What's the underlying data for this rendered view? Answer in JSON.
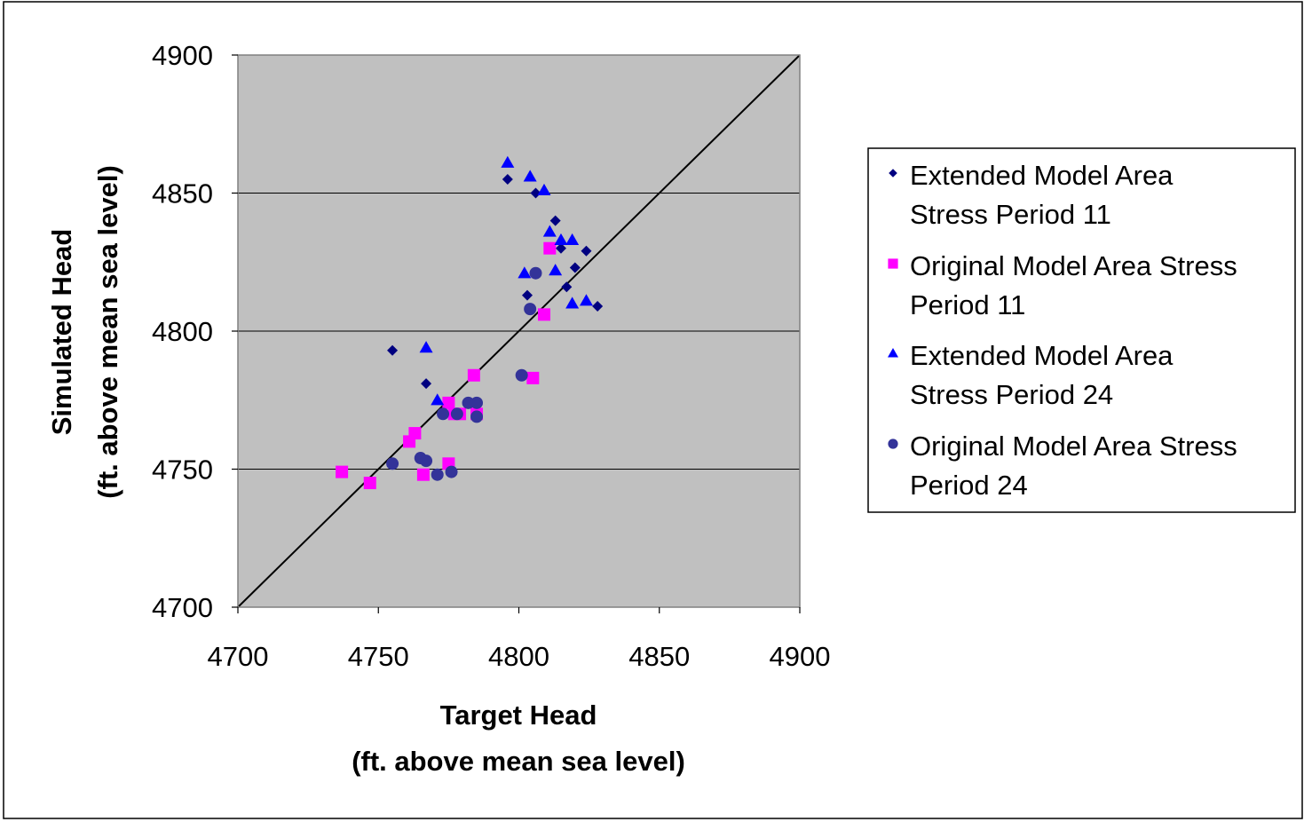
{
  "chart_data": {
    "type": "scatter",
    "title": "",
    "xlabel_line1": "Target Head",
    "xlabel_line2": "(ft. above mean sea level)",
    "ylabel_line1": "Simulated Head",
    "ylabel_line2": "(ft. above mean sea level)",
    "xlim": [
      4700,
      4900
    ],
    "ylim": [
      4700,
      4900
    ],
    "x_ticks": [
      "4700",
      "4750",
      "4800",
      "4850",
      "4900"
    ],
    "y_ticks": [
      "4700",
      "4750",
      "4800",
      "4850",
      "4900"
    ],
    "grid": "horizontal",
    "plot_background": "#c0c0c0",
    "legend_position": "right",
    "reference_line": {
      "from": [
        4700,
        4700
      ],
      "to": [
        4900,
        4900
      ]
    },
    "series": [
      {
        "name_line1": "Extended  Model Area",
        "name_line2": "Stress Period 11",
        "marker": "diamond",
        "color": "#000080",
        "points": [
          [
            4755,
            4793
          ],
          [
            4767,
            4781
          ],
          [
            4796,
            4855
          ],
          [
            4806,
            4850
          ],
          [
            4813,
            4840
          ],
          [
            4815,
            4830
          ],
          [
            4820,
            4823
          ],
          [
            4824,
            4829
          ],
          [
            4803,
            4813
          ],
          [
            4817,
            4816
          ],
          [
            4828,
            4809
          ]
        ]
      },
      {
        "name_line1": "Original Model Area Stress",
        "name_line2": "Period 11",
        "marker": "square",
        "color": "#ff00ff",
        "points": [
          [
            4737,
            4749
          ],
          [
            4747,
            4745
          ],
          [
            4761,
            4760
          ],
          [
            4763,
            4763
          ],
          [
            4766,
            4748
          ],
          [
            4775,
            4752
          ],
          [
            4775,
            4774
          ],
          [
            4777,
            4770
          ],
          [
            4779,
            4770
          ],
          [
            4784,
            4784
          ],
          [
            4785,
            4770
          ],
          [
            4805,
            4783
          ],
          [
            4809,
            4806
          ],
          [
            4811,
            4830
          ]
        ]
      },
      {
        "name_line1": "Extended Model Area",
        "name_line2": "Stress Period 24",
        "marker": "triangle",
        "color": "#0000ff",
        "points": [
          [
            4767,
            4794
          ],
          [
            4771,
            4775
          ],
          [
            4796,
            4861
          ],
          [
            4804,
            4856
          ],
          [
            4809,
            4851
          ],
          [
            4811,
            4836
          ],
          [
            4813,
            4822
          ],
          [
            4815,
            4833
          ],
          [
            4819,
            4833
          ],
          [
            4802,
            4821
          ],
          [
            4819,
            4810
          ],
          [
            4824,
            4811
          ]
        ]
      },
      {
        "name_line1": "Original Model Area Stress",
        "name_line2": "Period 24",
        "marker": "circle",
        "color": "#333399",
        "points": [
          [
            4755,
            4752
          ],
          [
            4765,
            4754
          ],
          [
            4767,
            4753
          ],
          [
            4771,
            4748
          ],
          [
            4773,
            4770
          ],
          [
            4776,
            4749
          ],
          [
            4778,
            4770
          ],
          [
            4782,
            4774
          ],
          [
            4785,
            4774
          ],
          [
            4785,
            4769
          ],
          [
            4801,
            4784
          ],
          [
            4804,
            4808
          ],
          [
            4806,
            4821
          ]
        ]
      }
    ]
  }
}
